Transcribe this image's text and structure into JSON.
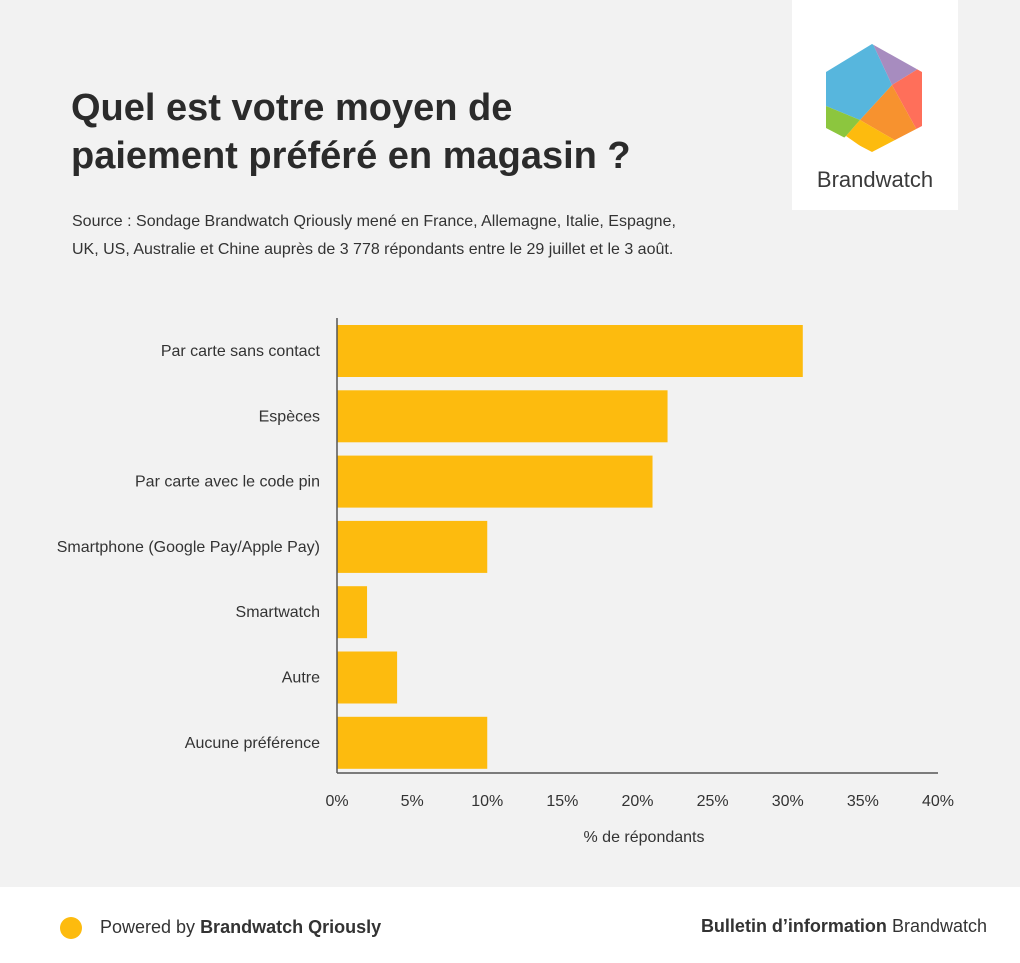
{
  "title_line1": "Quel est votre moyen de",
  "title_line2": "paiement préféré en magasin ?",
  "source_line1": "Source : Sondage Brandwatch Qriously mené en France, Allemagne, Italie, Espagne,",
  "source_line2": "UK, US, Australie et Chine auprès de 3 778 répondants entre le 29 juillet et le 3 août.",
  "logo_text": "Brandwatch",
  "footer": {
    "powered_prefix": "Powered by ",
    "powered_brand": "Brandwatch Qriously",
    "bulletin_bold": "Bulletin d’information",
    "bulletin_rest": " Brandwatch"
  },
  "colors": {
    "bar": "#fdbb0e",
    "axis": "#555555"
  },
  "chart_data": {
    "type": "bar",
    "orientation": "horizontal",
    "categories": [
      "Par carte sans contact",
      "Espèces",
      "Par carte avec le code pin",
      "Smartphone (Google Pay/Apple Pay)",
      "Smartwatch",
      "Autre",
      "Aucune préférence"
    ],
    "values": [
      31,
      22,
      21,
      10,
      2,
      4,
      10
    ],
    "xlabel": "% de répondants",
    "xlim": [
      0,
      40
    ],
    "xticks": [
      "0%",
      "5%",
      "10%",
      "15%",
      "20%",
      "25%",
      "30%",
      "35%",
      "40%"
    ],
    "grid": false
  }
}
